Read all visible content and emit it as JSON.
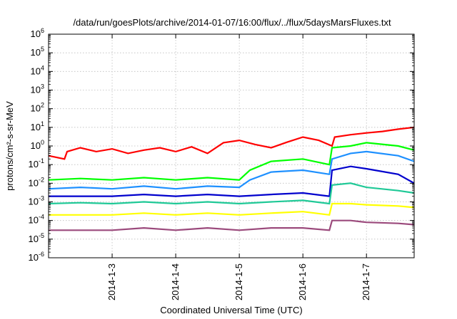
{
  "chart_data": {
    "type": "line",
    "title": "/data/run/goesPlots/archive/2014-01-07/16:00/flux/../flux/5daysMarsFluxes.txt",
    "xlabel": "Coordinated Universal Time (UTC)",
    "ylabel": "protons/cm²-s-sr-MeV",
    "x_axis": {
      "type": "time",
      "range": [
        "2014-01-02T00:00",
        "2014-01-07T18:00"
      ],
      "tick_labels": [
        "2014-1-3",
        "2014-1-4",
        "2014-1-5",
        "2014-1-6",
        "2014-1-7"
      ]
    },
    "y_axis": {
      "scale": "log",
      "range": [
        1e-06,
        1000000.0
      ],
      "tick_labels": [
        "10^-6",
        "10^-5",
        "10^-4",
        "10^-3",
        "10^-2",
        "10^-1",
        "10^0",
        "10^1",
        "10^2",
        "10^3",
        "10^4",
        "10^5",
        "10^6"
      ]
    },
    "grid": true,
    "legend": "none",
    "series": [
      {
        "color": "#ff0000",
        "x": [
          "2014-01-02 00:00",
          "2014-01-02 06:00",
          "2014-01-02 07:00",
          "2014-01-02 12:00",
          "2014-01-02 18:00",
          "2014-01-03 00:00",
          "2014-01-03 06:00",
          "2014-01-03 12:00",
          "2014-01-03 18:00",
          "2014-01-04 00:00",
          "2014-01-04 06:00",
          "2014-01-04 12:00",
          "2014-01-04 18:00",
          "2014-01-05 00:00",
          "2014-01-05 06:00",
          "2014-01-05 12:00",
          "2014-01-05 18:00",
          "2014-01-06 00:00",
          "2014-01-06 06:00",
          "2014-01-06 11:00",
          "2014-01-06 12:00",
          "2014-01-06 18:00",
          "2014-01-07 00:00",
          "2014-01-07 06:00",
          "2014-01-07 12:00",
          "2014-01-07 18:00"
        ],
        "y": [
          0.3,
          0.2,
          0.5,
          0.8,
          0.5,
          0.7,
          0.4,
          0.6,
          0.8,
          0.5,
          0.9,
          0.4,
          1.5,
          2.0,
          1.2,
          0.8,
          1.6,
          3.0,
          2.0,
          1.0,
          3.0,
          4.0,
          5.0,
          6.0,
          8.0,
          10.0
        ]
      },
      {
        "color": "#00ff00",
        "x": [
          "2014-01-02 00:00",
          "2014-01-02 12:00",
          "2014-01-03 00:00",
          "2014-01-03 12:00",
          "2014-01-04 00:00",
          "2014-01-04 12:00",
          "2014-01-05 00:00",
          "2014-01-05 04:00",
          "2014-01-05 12:00",
          "2014-01-06 00:00",
          "2014-01-06 10:00",
          "2014-01-06 11:00",
          "2014-01-06 18:00",
          "2014-01-07 00:00",
          "2014-01-07 12:00",
          "2014-01-07 18:00"
        ],
        "y": [
          0.015,
          0.018,
          0.015,
          0.02,
          0.015,
          0.02,
          0.015,
          0.05,
          0.15,
          0.2,
          0.1,
          0.8,
          1.0,
          1.5,
          1.0,
          0.6
        ]
      },
      {
        "color": "#1e90ff",
        "x": [
          "2014-01-02 00:00",
          "2014-01-02 12:00",
          "2014-01-03 00:00",
          "2014-01-03 12:00",
          "2014-01-04 00:00",
          "2014-01-04 12:00",
          "2014-01-05 00:00",
          "2014-01-05 04:00",
          "2014-01-05 12:00",
          "2014-01-06 00:00",
          "2014-01-06 10:00",
          "2014-01-06 11:00",
          "2014-01-06 18:00",
          "2014-01-07 00:00",
          "2014-01-07 12:00",
          "2014-01-07 18:00"
        ],
        "y": [
          0.005,
          0.006,
          0.005,
          0.007,
          0.005,
          0.007,
          0.006,
          0.015,
          0.04,
          0.05,
          0.03,
          0.2,
          0.4,
          0.5,
          0.3,
          0.15
        ]
      },
      {
        "color": "#0000cd",
        "x": [
          "2014-01-02 00:00",
          "2014-01-02 12:00",
          "2014-01-03 00:00",
          "2014-01-03 12:00",
          "2014-01-04 00:00",
          "2014-01-04 12:00",
          "2014-01-05 00:00",
          "2014-01-05 12:00",
          "2014-01-06 00:00",
          "2014-01-06 10:00",
          "2014-01-06 11:00",
          "2014-01-06 18:00",
          "2014-01-07 00:00",
          "2014-01-07 12:00",
          "2014-01-07 18:00"
        ],
        "y": [
          0.002,
          0.002,
          0.002,
          0.0025,
          0.002,
          0.0025,
          0.002,
          0.0025,
          0.003,
          0.002,
          0.05,
          0.08,
          0.06,
          0.03,
          0.01
        ]
      },
      {
        "color": "#20c997",
        "x": [
          "2014-01-02 00:00",
          "2014-01-02 12:00",
          "2014-01-03 00:00",
          "2014-01-03 12:00",
          "2014-01-04 00:00",
          "2014-01-04 12:00",
          "2014-01-05 00:00",
          "2014-01-05 12:00",
          "2014-01-06 00:00",
          "2014-01-06 10:00",
          "2014-01-06 11:00",
          "2014-01-06 18:00",
          "2014-01-07 00:00",
          "2014-01-07 12:00",
          "2014-01-07 18:00"
        ],
        "y": [
          0.0008,
          0.0009,
          0.0008,
          0.001,
          0.0008,
          0.001,
          0.0008,
          0.001,
          0.0012,
          0.0008,
          0.008,
          0.01,
          0.006,
          0.004,
          0.003
        ]
      },
      {
        "color": "#ffff00",
        "x": [
          "2014-01-02 00:00",
          "2014-01-02 12:00",
          "2014-01-03 00:00",
          "2014-01-03 12:00",
          "2014-01-04 00:00",
          "2014-01-04 12:00",
          "2014-01-05 00:00",
          "2014-01-05 12:00",
          "2014-01-06 00:00",
          "2014-01-06 10:00",
          "2014-01-06 11:00",
          "2014-01-06 18:00",
          "2014-01-07 00:00",
          "2014-01-07 12:00",
          "2014-01-07 18:00"
        ],
        "y": [
          0.0002,
          0.0002,
          0.0002,
          0.00025,
          0.0002,
          0.00025,
          0.0002,
          0.00025,
          0.0003,
          0.0002,
          0.0008,
          0.0008,
          0.0007,
          0.0006,
          0.0005
        ]
      },
      {
        "color": "#9b4a7c",
        "x": [
          "2014-01-02 00:00",
          "2014-01-02 12:00",
          "2014-01-03 00:00",
          "2014-01-03 12:00",
          "2014-01-04 00:00",
          "2014-01-04 12:00",
          "2014-01-05 00:00",
          "2014-01-05 12:00",
          "2014-01-06 00:00",
          "2014-01-06 10:00",
          "2014-01-06 11:00",
          "2014-01-06 18:00",
          "2014-01-07 00:00",
          "2014-01-07 12:00",
          "2014-01-07 18:00"
        ],
        "y": [
          3e-05,
          3e-05,
          3e-05,
          4e-05,
          3e-05,
          4e-05,
          3e-05,
          4e-05,
          4e-05,
          3e-05,
          0.0001,
          0.0001,
          8e-05,
          7e-05,
          6e-05
        ]
      }
    ]
  }
}
